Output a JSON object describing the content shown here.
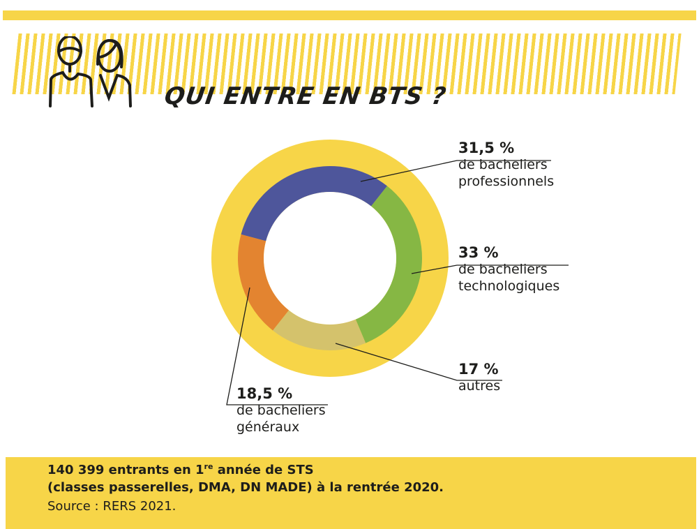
{
  "header": {
    "title": "QUI ENTRE EN BTS ?",
    "icon": "two-persons-icon"
  },
  "colors": {
    "yellow": "#F7D548",
    "professionnels": "#4E569B",
    "technologiques": "#86B744",
    "autres": "#D4C26C",
    "generaux": "#E38430"
  },
  "chart_data": {
    "type": "pie",
    "style": "donut",
    "title": "QUI ENTRE EN BTS ?",
    "slices": [
      {
        "pct_label": "31,5 %",
        "value": 31.5,
        "label_line1": "de bacheliers",
        "label_line2": "professionnels",
        "color": "#4E569B"
      },
      {
        "pct_label": "33 %",
        "value": 33,
        "label_line1": "de bacheliers",
        "label_line2": "technologiques",
        "color": "#86B744"
      },
      {
        "pct_label": "17 %",
        "value": 17,
        "label_line1": "autres",
        "label_line2": "",
        "color": "#D4C26C"
      },
      {
        "pct_label": "18,5 %",
        "value": 18.5,
        "label_line1": "de bacheliers",
        "label_line2": "généraux",
        "color": "#E38430"
      }
    ]
  },
  "footer": {
    "line1_pre": "140 399 entrants en 1",
    "line1_sup": "re",
    "line1_post": " année de STS",
    "line2": "(classes passerelles, DMA, DN MADE) à la rentrée 2020.",
    "source": "Source : RERS 2021."
  }
}
